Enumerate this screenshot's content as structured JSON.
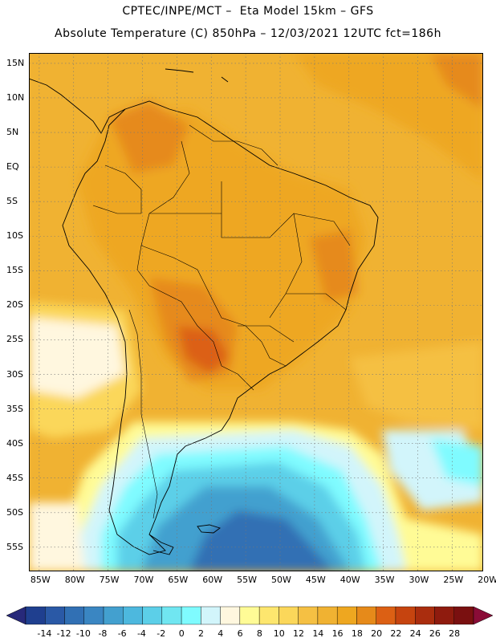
{
  "header": {
    "line1": "CPTEC/INPE/MCT –  Eta Model 15km – GFS",
    "line2": "Absolute Temperature (C) 850hPa – 12/03/2021 12UTC fct=186h"
  },
  "map": {
    "lat_labels": [
      "15N",
      "10N",
      "5N",
      "EQ",
      "5S",
      "10S",
      "15S",
      "20S",
      "25S",
      "30S",
      "35S",
      "40S",
      "45S",
      "50S",
      "55S"
    ],
    "lon_labels": [
      "85W",
      "80W",
      "75W",
      "70W",
      "65W",
      "60W",
      "55W",
      "50W",
      "45W",
      "40W",
      "35W",
      "30W",
      "25W",
      "20W"
    ],
    "lat_values": [
      15,
      10,
      5,
      0,
      -5,
      -10,
      -15,
      -20,
      -25,
      -30,
      -35,
      -40,
      -45,
      -50,
      -55
    ],
    "lon_values": [
      -85,
      -80,
      -75,
      -70,
      -65,
      -60,
      -55,
      -50,
      -45,
      -40,
      -35,
      -30,
      -25,
      -20
    ]
  },
  "colorbar": {
    "labels": [
      "-14",
      "-12",
      "-10",
      "-8",
      "-6",
      "-4",
      "-2",
      "0",
      "2",
      "4",
      "6",
      "8",
      "10",
      "12",
      "14",
      "16",
      "18",
      "20",
      "22",
      "24",
      "26",
      "28"
    ],
    "colors": [
      "#1f3f8f",
      "#2a59a6",
      "#3170b4",
      "#3a86c2",
      "#43a0cf",
      "#4db8de",
      "#5ccfe8",
      "#70e6f1",
      "#7ffbff",
      "#d2f5fb",
      "#fff7df",
      "#fffb96",
      "#fde66e",
      "#fbd75a",
      "#f5c043",
      "#f0b232",
      "#eea720",
      "#e68a1a",
      "#dc6014",
      "#c6440f",
      "#aa2d0e",
      "#8f1b0e",
      "#7a1010"
    ],
    "left_triangle_color": "#27297a",
    "right_triangle_color": "#8a0c37"
  }
}
